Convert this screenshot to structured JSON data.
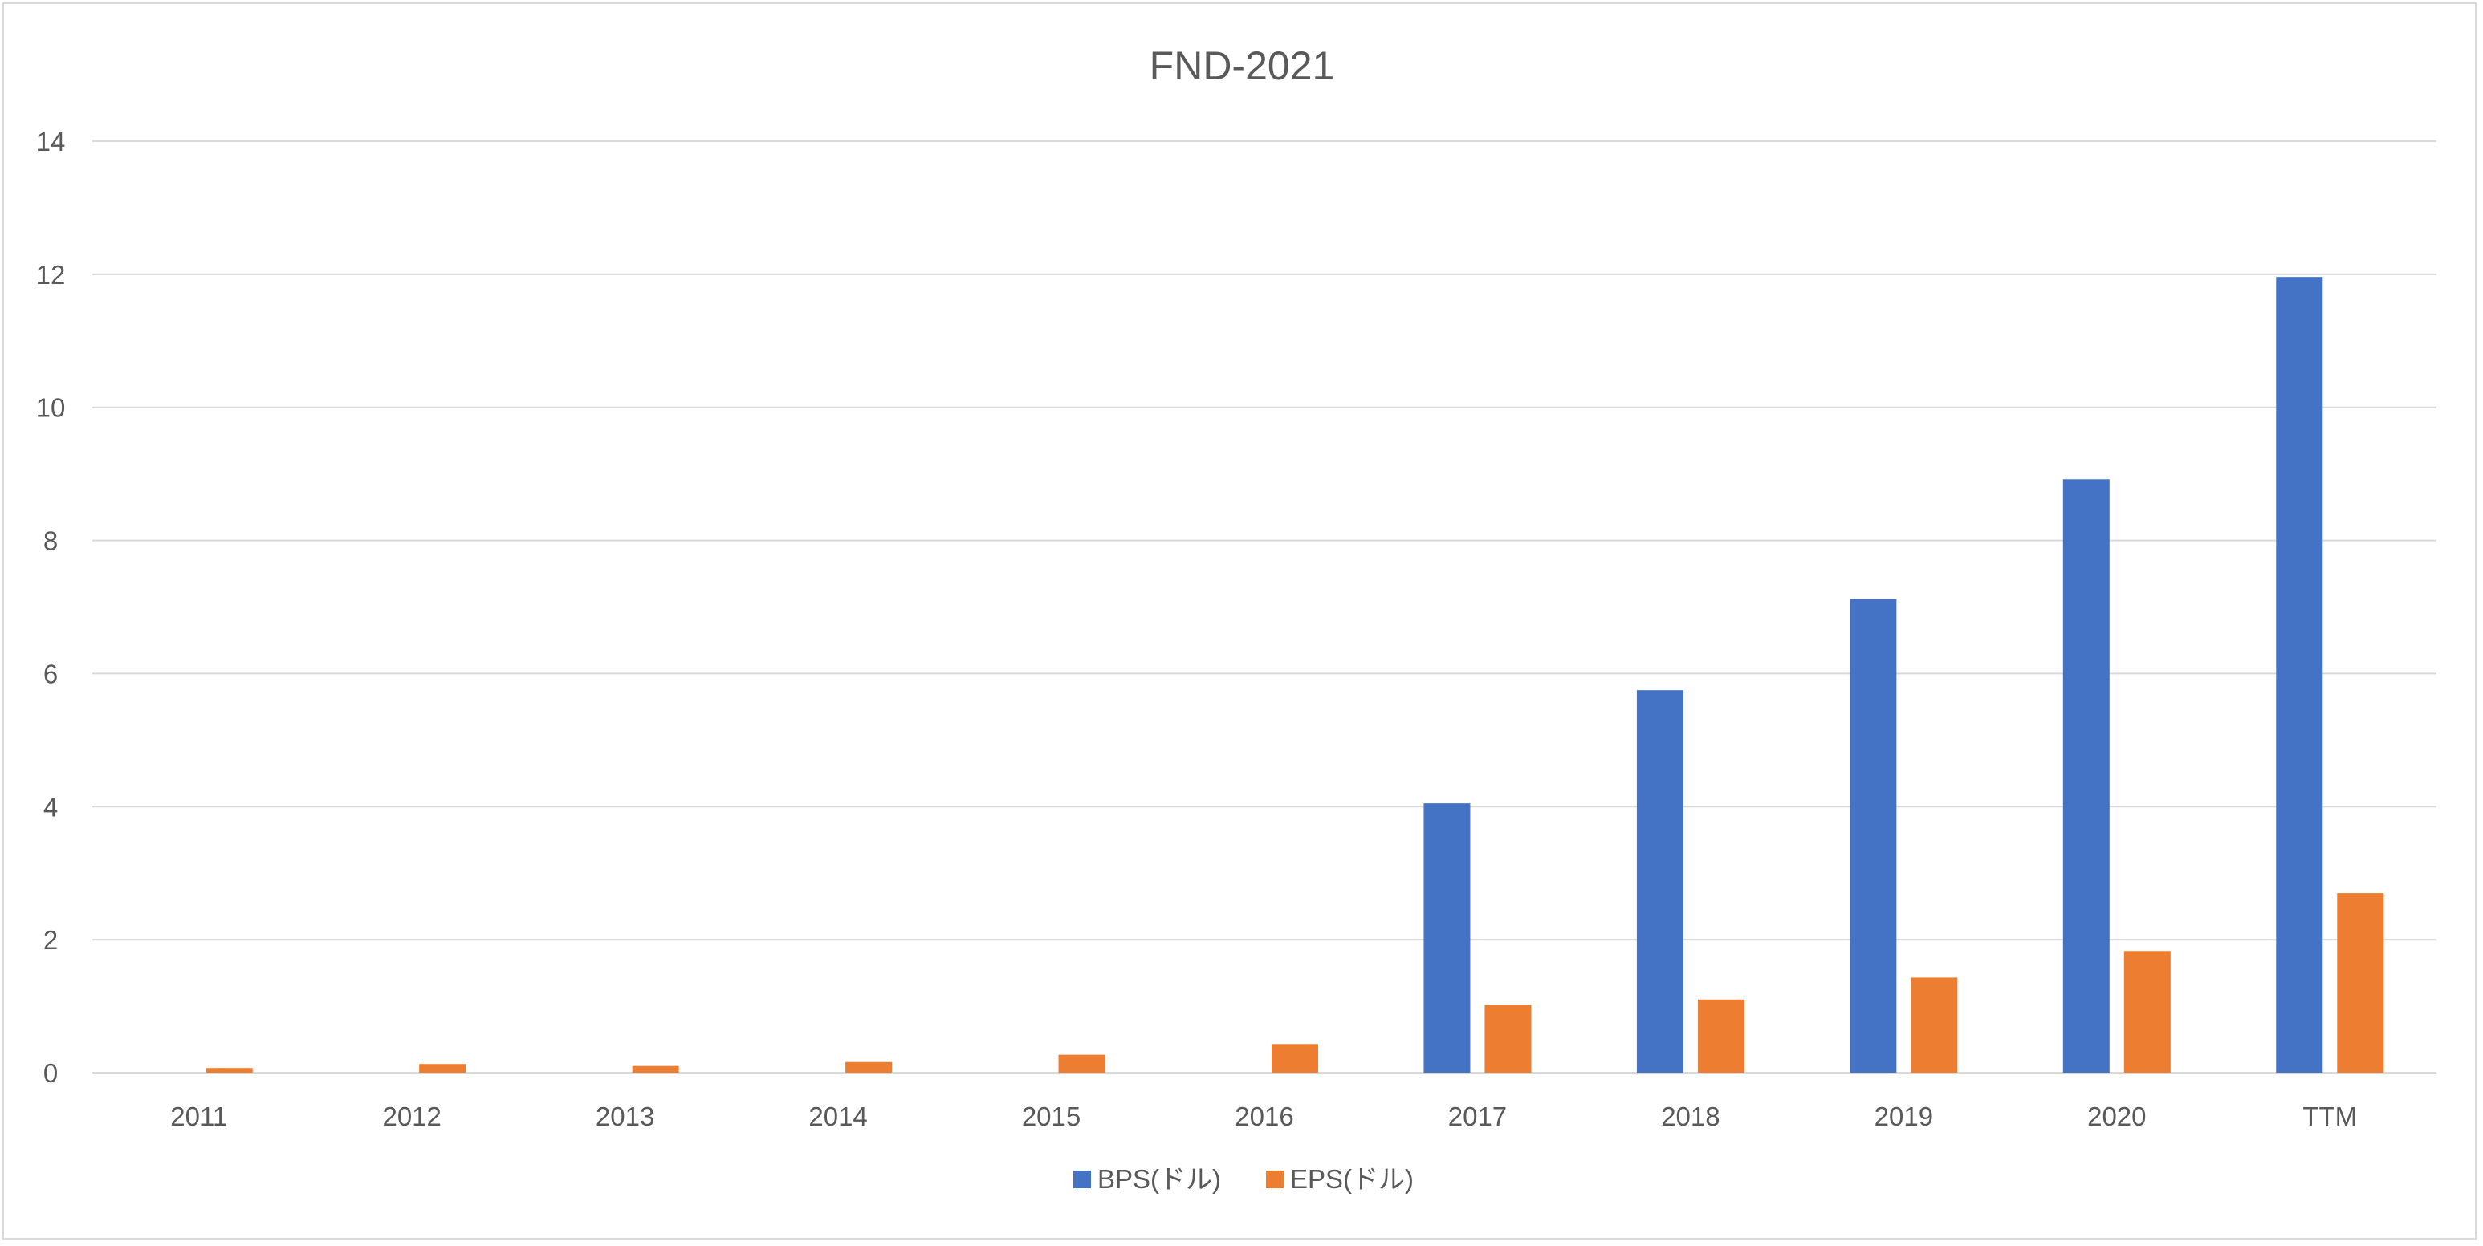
{
  "chart_data": {
    "type": "bar",
    "title": "FND-2021",
    "xlabel": "",
    "ylabel": "",
    "categories": [
      "2011",
      "2012",
      "2013",
      "2014",
      "2015",
      "2016",
      "2017",
      "2018",
      "2019",
      "2020",
      "TTM"
    ],
    "series": [
      {
        "name": "BPS(ドル)",
        "color": "#4472c4",
        "values": [
          0,
          0,
          0,
          0,
          0,
          0,
          4.05,
          5.75,
          7.12,
          8.92,
          11.96
        ]
      },
      {
        "name": "EPS(ドル)",
        "color": "#ed7d31",
        "values": [
          0.07,
          0.13,
          0.1,
          0.16,
          0.27,
          0.43,
          1.02,
          1.1,
          1.43,
          1.83,
          2.7
        ]
      }
    ],
    "ylim": [
      0,
      14
    ],
    "yticks": [
      "0",
      "2",
      "4",
      "6",
      "8",
      "10",
      "12",
      "14"
    ],
    "grid": true,
    "legend_position": "bottom"
  }
}
